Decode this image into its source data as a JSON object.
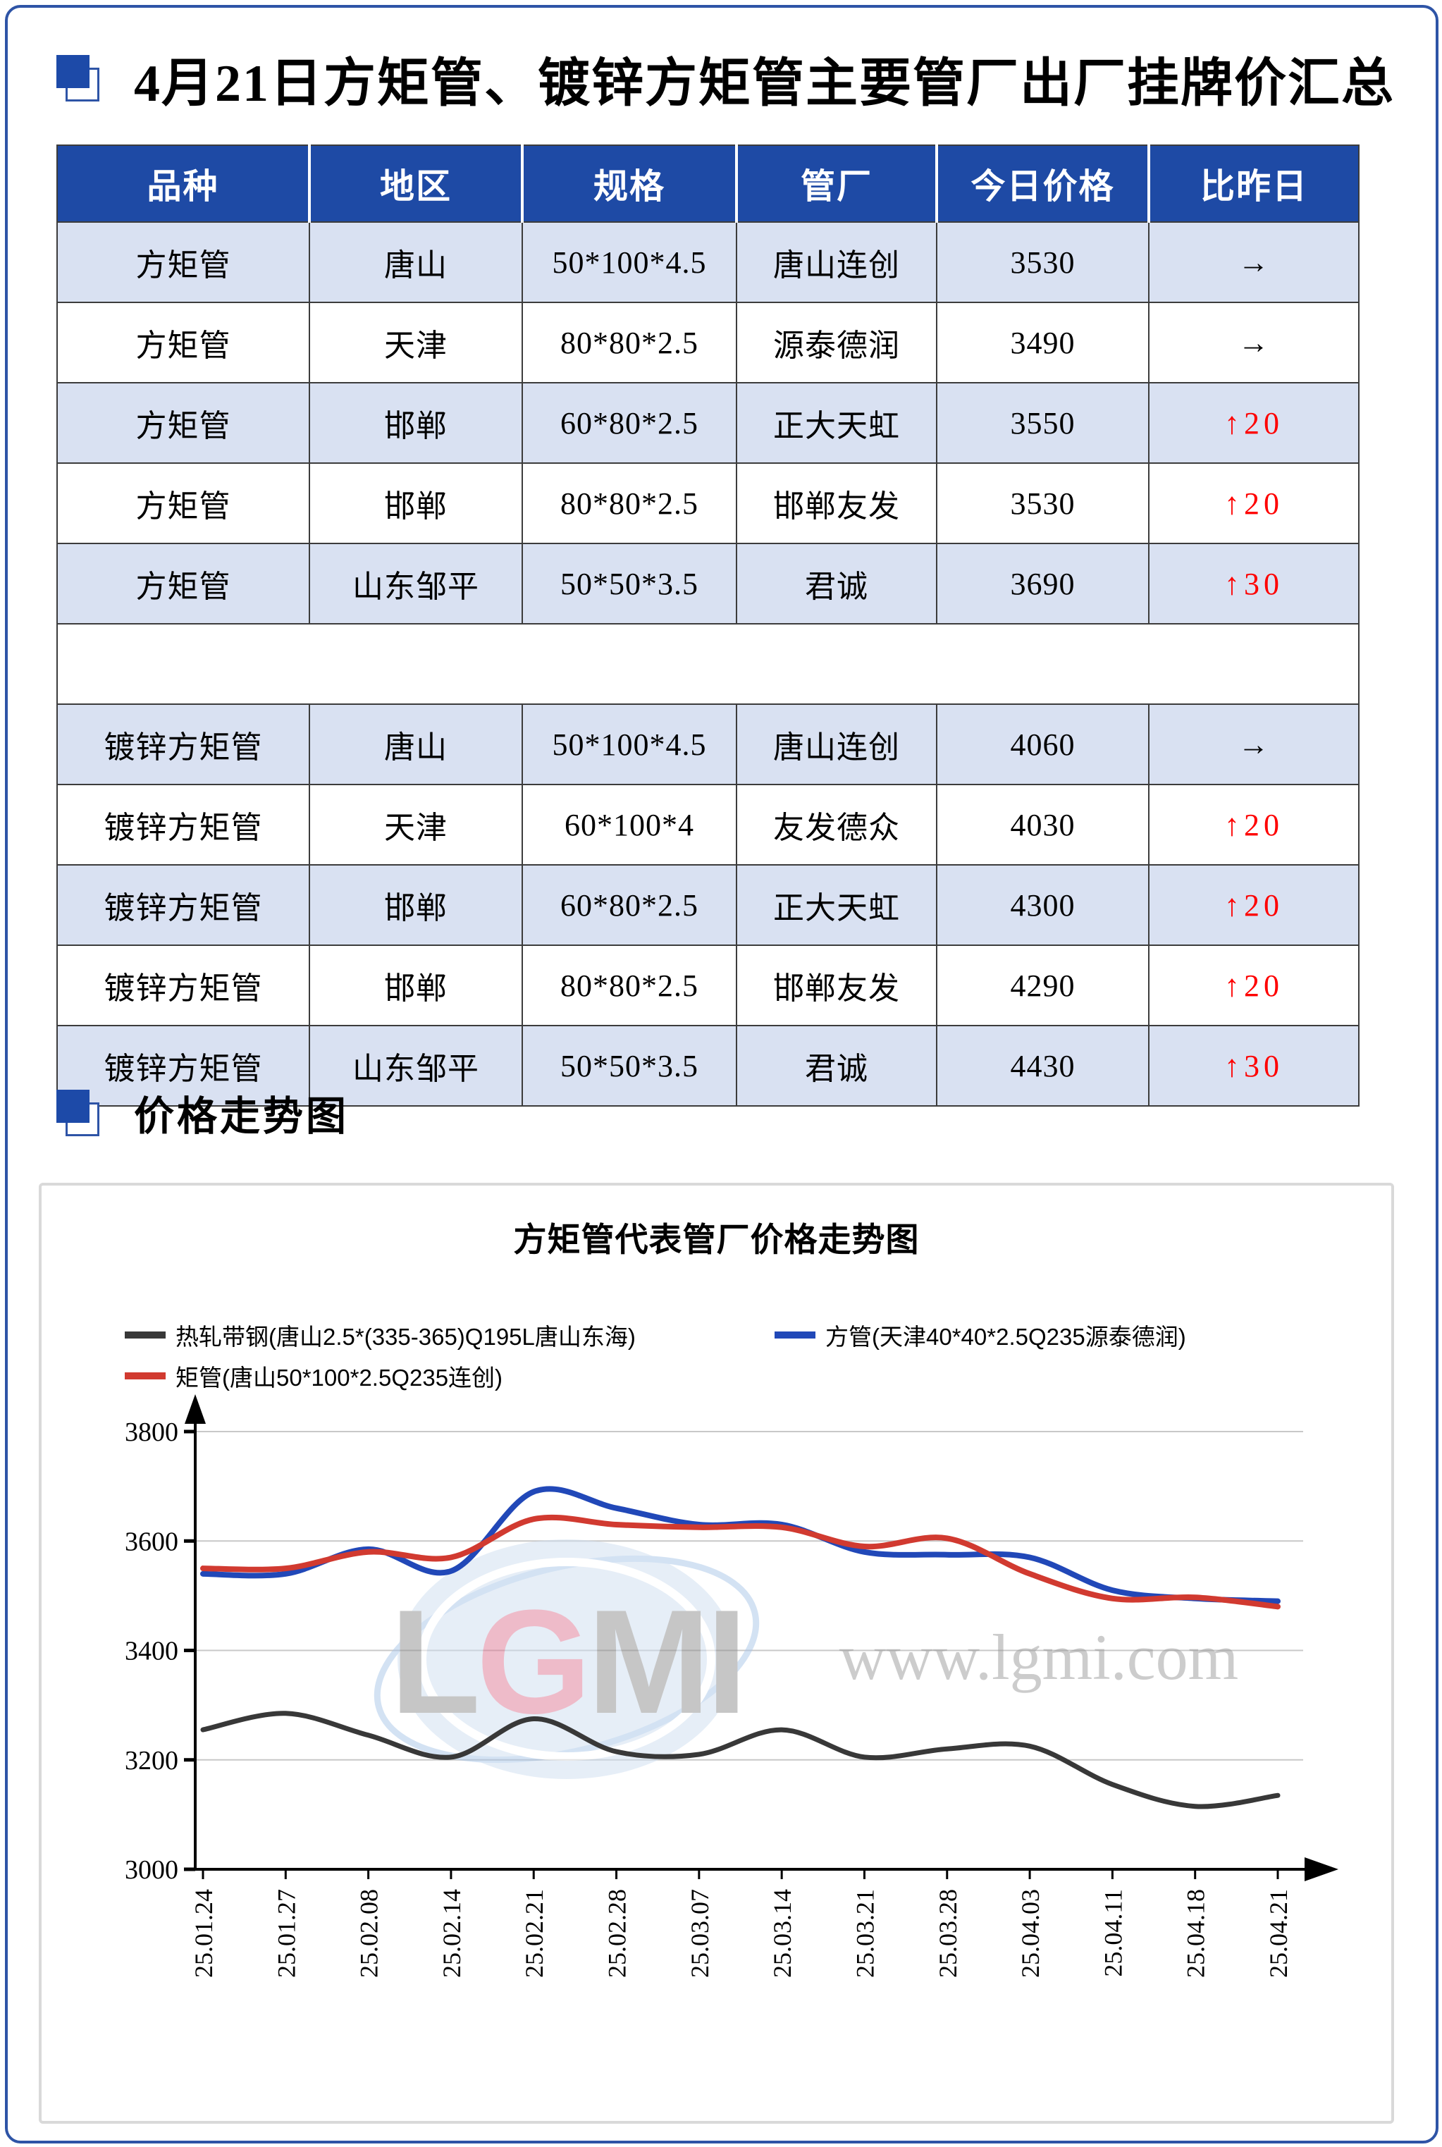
{
  "page": {
    "title": "4月21日方矩管、镀锌方矩管主要管厂出厂挂牌价汇总",
    "section2_title": "价格走势图",
    "accent_blue": "#1e4aa5",
    "row_alt_blue": "#d9e1f2",
    "up_red": "#fe0000",
    "page_border_blue": "#2e54a6"
  },
  "table": {
    "headers": [
      "品种",
      "地区",
      "规格",
      "管厂",
      "今日价格",
      "比昨日"
    ],
    "groups": [
      {
        "rows": [
          {
            "variety": "方矩管",
            "region": "唐山",
            "spec": "50*100*4.5",
            "factory": "唐山连创",
            "price": "3530",
            "change": "→"
          },
          {
            "variety": "方矩管",
            "region": "天津",
            "spec": "80*80*2.5",
            "factory": "源泰德润",
            "price": "3490",
            "change": "→"
          },
          {
            "variety": "方矩管",
            "region": "邯郸",
            "spec": "60*80*2.5",
            "factory": "正大天虹",
            "price": "3550",
            "change": "↑20"
          },
          {
            "variety": "方矩管",
            "region": "邯郸",
            "spec": "80*80*2.5",
            "factory": "邯郸友发",
            "price": "3530",
            "change": "↑20"
          },
          {
            "variety": "方矩管",
            "region": "山东邹平",
            "spec": "50*50*3.5",
            "factory": "君诚",
            "price": "3690",
            "change": "↑30"
          }
        ]
      },
      {
        "rows": [
          {
            "variety": "镀锌方矩管",
            "region": "唐山",
            "spec": "50*100*4.5",
            "factory": "唐山连创",
            "price": "4060",
            "change": "→"
          },
          {
            "variety": "镀锌方矩管",
            "region": "天津",
            "spec": "60*100*4",
            "factory": "友发德众",
            "price": "4030",
            "change": "↑20"
          },
          {
            "variety": "镀锌方矩管",
            "region": "邯郸",
            "spec": "60*80*2.5",
            "factory": "正大天虹",
            "price": "4300",
            "change": "↑20"
          },
          {
            "variety": "镀锌方矩管",
            "region": "邯郸",
            "spec": "80*80*2.5",
            "factory": "邯郸友发",
            "price": "4290",
            "change": "↑20"
          },
          {
            "variety": "镀锌方矩管",
            "region": "山东邹平",
            "spec": "50*50*3.5",
            "factory": "君诚",
            "price": "4430",
            "change": "↑30"
          }
        ]
      }
    ]
  },
  "chart_data": {
    "type": "line",
    "title": "方矩管代表管厂价格走势图",
    "categories": [
      "25.01.24",
      "25.01.27",
      "25.02.08",
      "25.02.14",
      "25.02.21",
      "25.02.28",
      "25.03.07",
      "25.03.14",
      "25.03.21",
      "25.03.28",
      "25.04.03",
      "25.04.11",
      "25.04.18",
      "25.04.21"
    ],
    "series": [
      {
        "name": "热轧带钢(唐山2.5*(335-365)Q195L唐山东海)",
        "color": "#383838",
        "values": [
          3255,
          3285,
          3245,
          3205,
          3275,
          3215,
          3210,
          3255,
          3205,
          3220,
          3225,
          3155,
          3115,
          3135
        ]
      },
      {
        "name": "方管(天津40*40*2.5Q235源泰德润)",
        "color": "#2148b8",
        "values": [
          3540,
          3540,
          3585,
          3545,
          3690,
          3660,
          3630,
          3630,
          3580,
          3575,
          3570,
          3510,
          3495,
          3490
        ]
      },
      {
        "name": "矩管(唐山50*100*2.5Q235连创)",
        "color": "#d13a30",
        "values": [
          3550,
          3550,
          3580,
          3570,
          3640,
          3630,
          3625,
          3625,
          3590,
          3605,
          3540,
          3495,
          3497,
          3480
        ]
      }
    ],
    "ylim": [
      3000,
      3800
    ],
    "yticks": [
      3000,
      3200,
      3400,
      3600,
      3800
    ],
    "grid": true,
    "legend_position": "top",
    "watermark_logo": "LGMI",
    "watermark_url": "www.lgmi.com"
  }
}
